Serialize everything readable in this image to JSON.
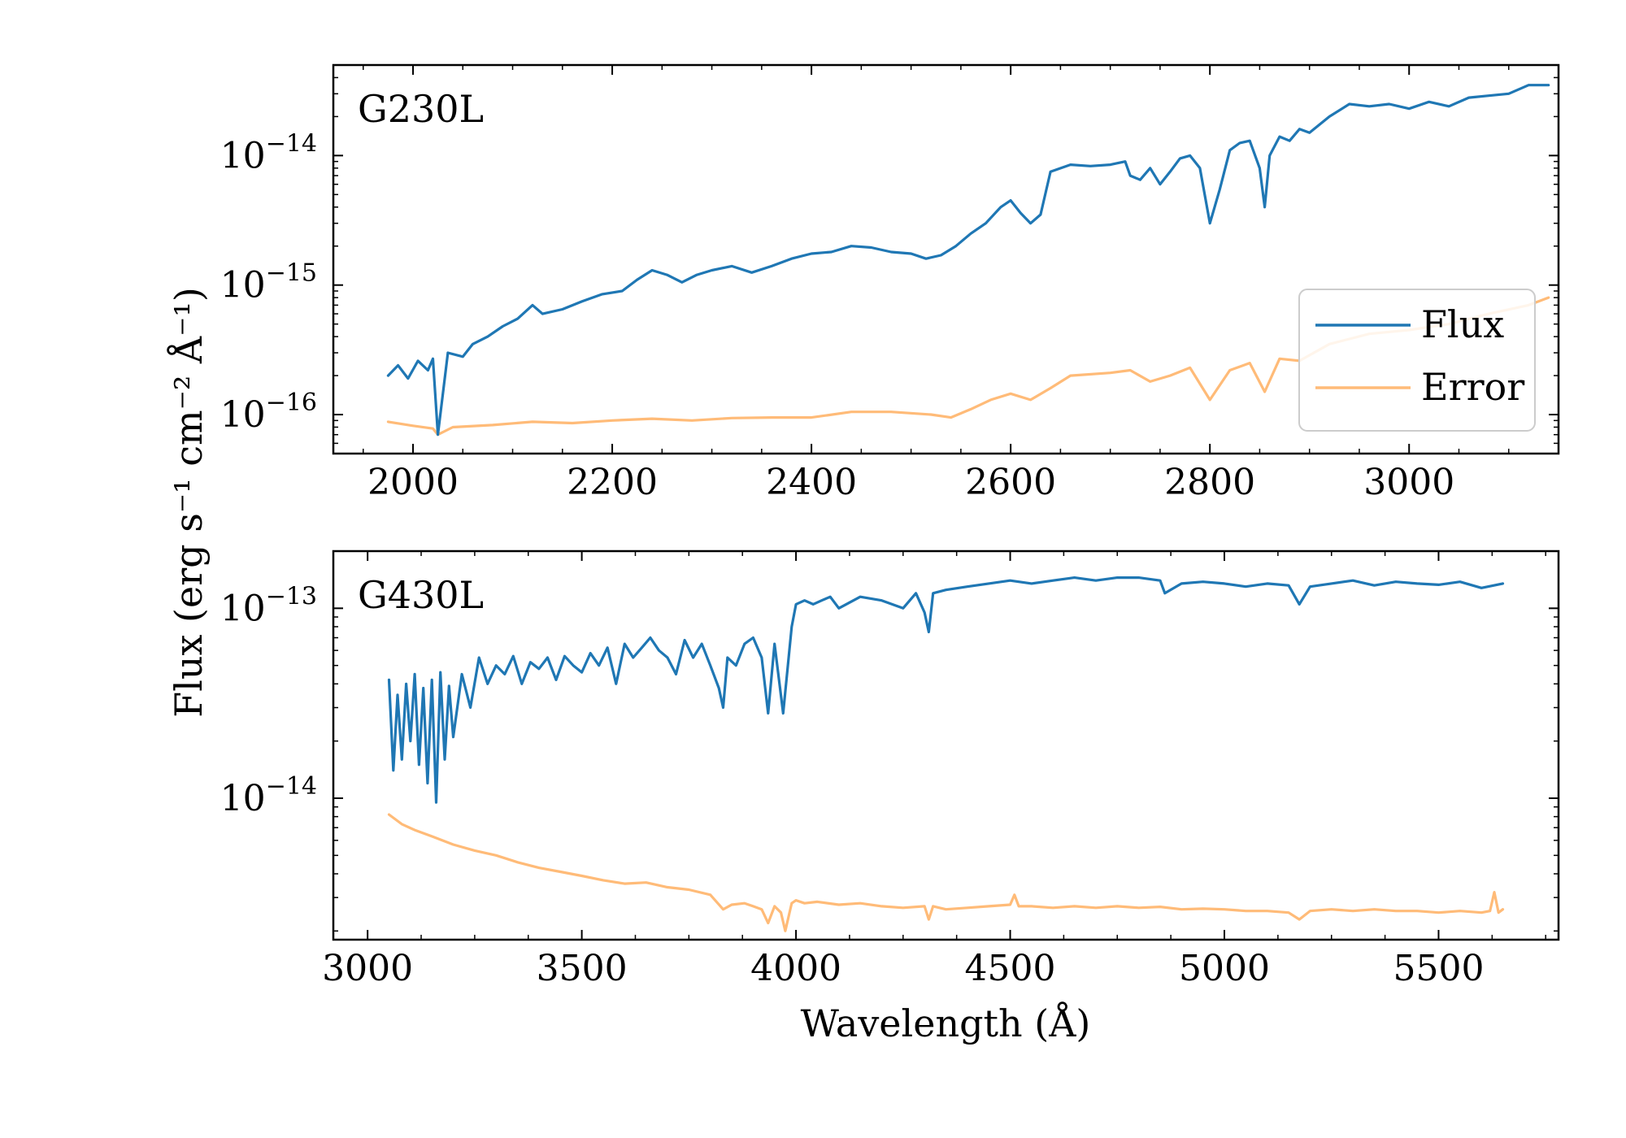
{
  "chart_data": [
    {
      "type": "line",
      "panel_label": "G230L",
      "xlim": [
        1920,
        3150
      ],
      "ylim": [
        5e-17,
        5e-14
      ],
      "yscale": "log",
      "x_ticks": [
        2000,
        2200,
        2400,
        2600,
        2800,
        3000
      ],
      "x_tick_labels": [
        "2000",
        "2200",
        "2400",
        "2600",
        "2800",
        "3000"
      ],
      "y_ticks": [
        {
          "value": 1e-16,
          "base": "10",
          "exponent": "−16"
        },
        {
          "value": 1e-15,
          "base": "10",
          "exponent": "−15"
        },
        {
          "value": 1e-14,
          "base": "10",
          "exponent": "−14"
        }
      ],
      "legend": {
        "placement": "lower-right",
        "entries": [
          {
            "label": "Flux",
            "color": "#1f77b4"
          },
          {
            "label": "Error",
            "color": "#ffbb78"
          }
        ]
      },
      "series": [
        {
          "name": "Flux",
          "color": "#1f77b4",
          "x": [
            1975,
            1985,
            1995,
            2005,
            2015,
            2020,
            2025,
            2035,
            2050,
            2060,
            2075,
            2090,
            2105,
            2120,
            2130,
            2150,
            2170,
            2190,
            2210,
            2225,
            2240,
            2255,
            2270,
            2285,
            2300,
            2320,
            2340,
            2360,
            2380,
            2400,
            2420,
            2440,
            2460,
            2480,
            2500,
            2515,
            2530,
            2545,
            2560,
            2575,
            2590,
            2600,
            2610,
            2620,
            2630,
            2640,
            2660,
            2680,
            2700,
            2715,
            2720,
            2730,
            2740,
            2750,
            2760,
            2770,
            2780,
            2790,
            2800,
            2810,
            2820,
            2830,
            2840,
            2850,
            2855,
            2860,
            2870,
            2880,
            2890,
            2900,
            2920,
            2940,
            2960,
            2980,
            3000,
            3020,
            3040,
            3060,
            3080,
            3100,
            3120,
            3140
          ],
          "y": [
            2e-16,
            2.4e-16,
            1.9e-16,
            2.6e-16,
            2.2e-16,
            2.7e-16,
            7e-17,
            3e-16,
            2.8e-16,
            3.5e-16,
            4e-16,
            4.8e-16,
            5.5e-16,
            7e-16,
            6e-16,
            6.5e-16,
            7.5e-16,
            8.5e-16,
            9e-16,
            1.1e-15,
            1.3e-15,
            1.2e-15,
            1.05e-15,
            1.2e-15,
            1.3e-15,
            1.4e-15,
            1.25e-15,
            1.4e-15,
            1.6e-15,
            1.75e-15,
            1.8e-15,
            2e-15,
            1.95e-15,
            1.8e-15,
            1.75e-15,
            1.6e-15,
            1.7e-15,
            2e-15,
            2.5e-15,
            3e-15,
            4e-15,
            4.5e-15,
            3.6e-15,
            3e-15,
            3.5e-15,
            7.5e-15,
            8.5e-15,
            8.3e-15,
            8.5e-15,
            9e-15,
            7e-15,
            6.5e-15,
            8e-15,
            6e-15,
            7.5e-15,
            9.5e-15,
            1e-14,
            8e-15,
            3e-15,
            5.5e-15,
            1.1e-14,
            1.25e-14,
            1.3e-14,
            8e-15,
            4e-15,
            1e-14,
            1.4e-14,
            1.3e-14,
            1.6e-14,
            1.5e-14,
            2e-14,
            2.5e-14,
            2.4e-14,
            2.5e-14,
            2.3e-14,
            2.6e-14,
            2.4e-14,
            2.8e-14,
            2.9e-14,
            3e-14,
            3.5e-14,
            3.5e-14
          ]
        },
        {
          "name": "Error",
          "color": "#ffbb78",
          "x": [
            1975,
            2000,
            2020,
            2025,
            2040,
            2080,
            2120,
            2160,
            2200,
            2240,
            2280,
            2320,
            2360,
            2400,
            2440,
            2480,
            2520,
            2540,
            2560,
            2580,
            2600,
            2620,
            2640,
            2660,
            2700,
            2720,
            2740,
            2760,
            2780,
            2800,
            2820,
            2840,
            2855,
            2870,
            2890,
            2920,
            2960,
            3000,
            3040,
            3080,
            3120,
            3140
          ],
          "y": [
            8.8e-17,
            8.2e-17,
            7.8e-17,
            7e-17,
            8e-17,
            8.3e-17,
            8.8e-17,
            8.6e-17,
            9e-17,
            9.3e-17,
            9e-17,
            9.4e-17,
            9.5e-17,
            9.5e-17,
            1.05e-16,
            1.05e-16,
            1e-16,
            9.5e-17,
            1.1e-16,
            1.3e-16,
            1.45e-16,
            1.3e-16,
            1.6e-16,
            2e-16,
            2.1e-16,
            2.2e-16,
            1.8e-16,
            2e-16,
            2.3e-16,
            1.3e-16,
            2.2e-16,
            2.5e-16,
            1.5e-16,
            2.7e-16,
            2.6e-16,
            3.5e-16,
            4.2e-16,
            4.5e-16,
            5e-16,
            6e-16,
            7e-16,
            8e-16
          ]
        }
      ]
    },
    {
      "type": "line",
      "panel_label": "G430L",
      "xlim": [
        2920,
        5780
      ],
      "ylim": [
        1.8e-15,
        2e-13
      ],
      "yscale": "log",
      "x_ticks": [
        3000,
        3500,
        4000,
        4500,
        5000,
        5500
      ],
      "x_tick_labels": [
        "3000",
        "3500",
        "4000",
        "4500",
        "5000",
        "5500"
      ],
      "y_ticks": [
        {
          "value": 1e-14,
          "base": "10",
          "exponent": "−14"
        },
        {
          "value": 1e-13,
          "base": "10",
          "exponent": "−13"
        }
      ],
      "xlabel": "Wavelength (Å)",
      "ylabel": "Flux (erg s⁻¹ cm⁻² Å⁻¹)",
      "series": [
        {
          "name": "Flux",
          "color": "#1f77b4",
          "x": [
            3050,
            3060,
            3070,
            3080,
            3090,
            3100,
            3110,
            3120,
            3130,
            3140,
            3150,
            3160,
            3170,
            3180,
            3190,
            3200,
            3220,
            3240,
            3260,
            3280,
            3300,
            3320,
            3340,
            3360,
            3380,
            3400,
            3420,
            3440,
            3460,
            3480,
            3500,
            3520,
            3540,
            3560,
            3580,
            3600,
            3620,
            3640,
            3660,
            3680,
            3700,
            3720,
            3740,
            3760,
            3780,
            3800,
            3820,
            3830,
            3840,
            3860,
            3880,
            3900,
            3920,
            3935,
            3950,
            3970,
            3990,
            4000,
            4020,
            4040,
            4060,
            4080,
            4100,
            4150,
            4200,
            4250,
            4280,
            4300,
            4310,
            4320,
            4350,
            4400,
            4450,
            4500,
            4550,
            4600,
            4650,
            4700,
            4750,
            4800,
            4850,
            4861,
            4900,
            4950,
            5000,
            5050,
            5100,
            5150,
            5175,
            5200,
            5250,
            5300,
            5350,
            5400,
            5450,
            5500,
            5550,
            5600,
            5650
          ],
          "y": [
            4.2e-14,
            1.4e-14,
            3.5e-14,
            1.6e-14,
            4e-14,
            2e-14,
            4.5e-14,
            1.5e-14,
            3.8e-14,
            1.2e-14,
            4.2e-14,
            9.5e-15,
            4.6e-14,
            1.6e-14,
            3.9e-14,
            2.1e-14,
            4.5e-14,
            3e-14,
            5.5e-14,
            4e-14,
            5e-14,
            4.5e-14,
            5.6e-14,
            4e-14,
            5.2e-14,
            4.8e-14,
            5.5e-14,
            4.2e-14,
            5.6e-14,
            5e-14,
            4.6e-14,
            5.8e-14,
            5e-14,
            6.2e-14,
            4e-14,
            6.5e-14,
            5.5e-14,
            6.2e-14,
            7e-14,
            6e-14,
            5.5e-14,
            4.5e-14,
            6.8e-14,
            5.5e-14,
            6.5e-14,
            5e-14,
            3.8e-14,
            3e-14,
            5.5e-14,
            5e-14,
            6.5e-14,
            7e-14,
            5.5e-14,
            2.8e-14,
            6.5e-14,
            2.8e-14,
            8e-14,
            1.05e-13,
            1.1e-13,
            1.05e-13,
            1.1e-13,
            1.15e-13,
            1e-13,
            1.15e-13,
            1.1e-13,
            1e-13,
            1.2e-13,
            9.5e-14,
            7.5e-14,
            1.2e-13,
            1.25e-13,
            1.3e-13,
            1.35e-13,
            1.4e-13,
            1.35e-13,
            1.4e-13,
            1.45e-13,
            1.4e-13,
            1.45e-13,
            1.45e-13,
            1.4e-13,
            1.2e-13,
            1.35e-13,
            1.38e-13,
            1.35e-13,
            1.3e-13,
            1.35e-13,
            1.32e-13,
            1.05e-13,
            1.3e-13,
            1.35e-13,
            1.4e-13,
            1.32e-13,
            1.38e-13,
            1.35e-13,
            1.33e-13,
            1.38e-13,
            1.28e-13,
            1.35e-13
          ]
        },
        {
          "name": "Error",
          "color": "#ffbb78",
          "x": [
            3050,
            3080,
            3110,
            3150,
            3200,
            3250,
            3300,
            3350,
            3400,
            3450,
            3500,
            3550,
            3600,
            3650,
            3700,
            3750,
            3800,
            3830,
            3850,
            3880,
            3900,
            3920,
            3935,
            3950,
            3965,
            3975,
            3990,
            4000,
            4020,
            4050,
            4100,
            4150,
            4200,
            4250,
            4300,
            4310,
            4320,
            4350,
            4400,
            4450,
            4500,
            4510,
            4520,
            4550,
            4600,
            4650,
            4700,
            4750,
            4800,
            4850,
            4900,
            4950,
            5000,
            5050,
            5100,
            5150,
            5175,
            5200,
            5250,
            5300,
            5350,
            5400,
            5450,
            5500,
            5550,
            5600,
            5620,
            5630,
            5640,
            5650
          ],
          "y": [
            8.2e-15,
            7.3e-15,
            6.8e-15,
            6.3e-15,
            5.7e-15,
            5.3e-15,
            5e-15,
            4.6e-15,
            4.3e-15,
            4.1e-15,
            3.9e-15,
            3.7e-15,
            3.55e-15,
            3.6e-15,
            3.4e-15,
            3.3e-15,
            3.1e-15,
            2.6e-15,
            2.75e-15,
            2.8e-15,
            2.7e-15,
            2.6e-15,
            2.2e-15,
            2.7e-15,
            2.5e-15,
            2e-15,
            2.8e-15,
            2.9e-15,
            2.8e-15,
            2.85e-15,
            2.75e-15,
            2.8e-15,
            2.7e-15,
            2.65e-15,
            2.7e-15,
            2.3e-15,
            2.7e-15,
            2.6e-15,
            2.65e-15,
            2.7e-15,
            2.75e-15,
            3.1e-15,
            2.7e-15,
            2.7e-15,
            2.65e-15,
            2.7e-15,
            2.65e-15,
            2.7e-15,
            2.65e-15,
            2.68e-15,
            2.6e-15,
            2.62e-15,
            2.6e-15,
            2.55e-15,
            2.55e-15,
            2.5e-15,
            2.3e-15,
            2.55e-15,
            2.6e-15,
            2.55e-15,
            2.6e-15,
            2.55e-15,
            2.55e-15,
            2.5e-15,
            2.55e-15,
            2.5e-15,
            2.55e-15,
            3.2e-15,
            2.5e-15,
            2.6e-15
          ]
        }
      ]
    }
  ]
}
